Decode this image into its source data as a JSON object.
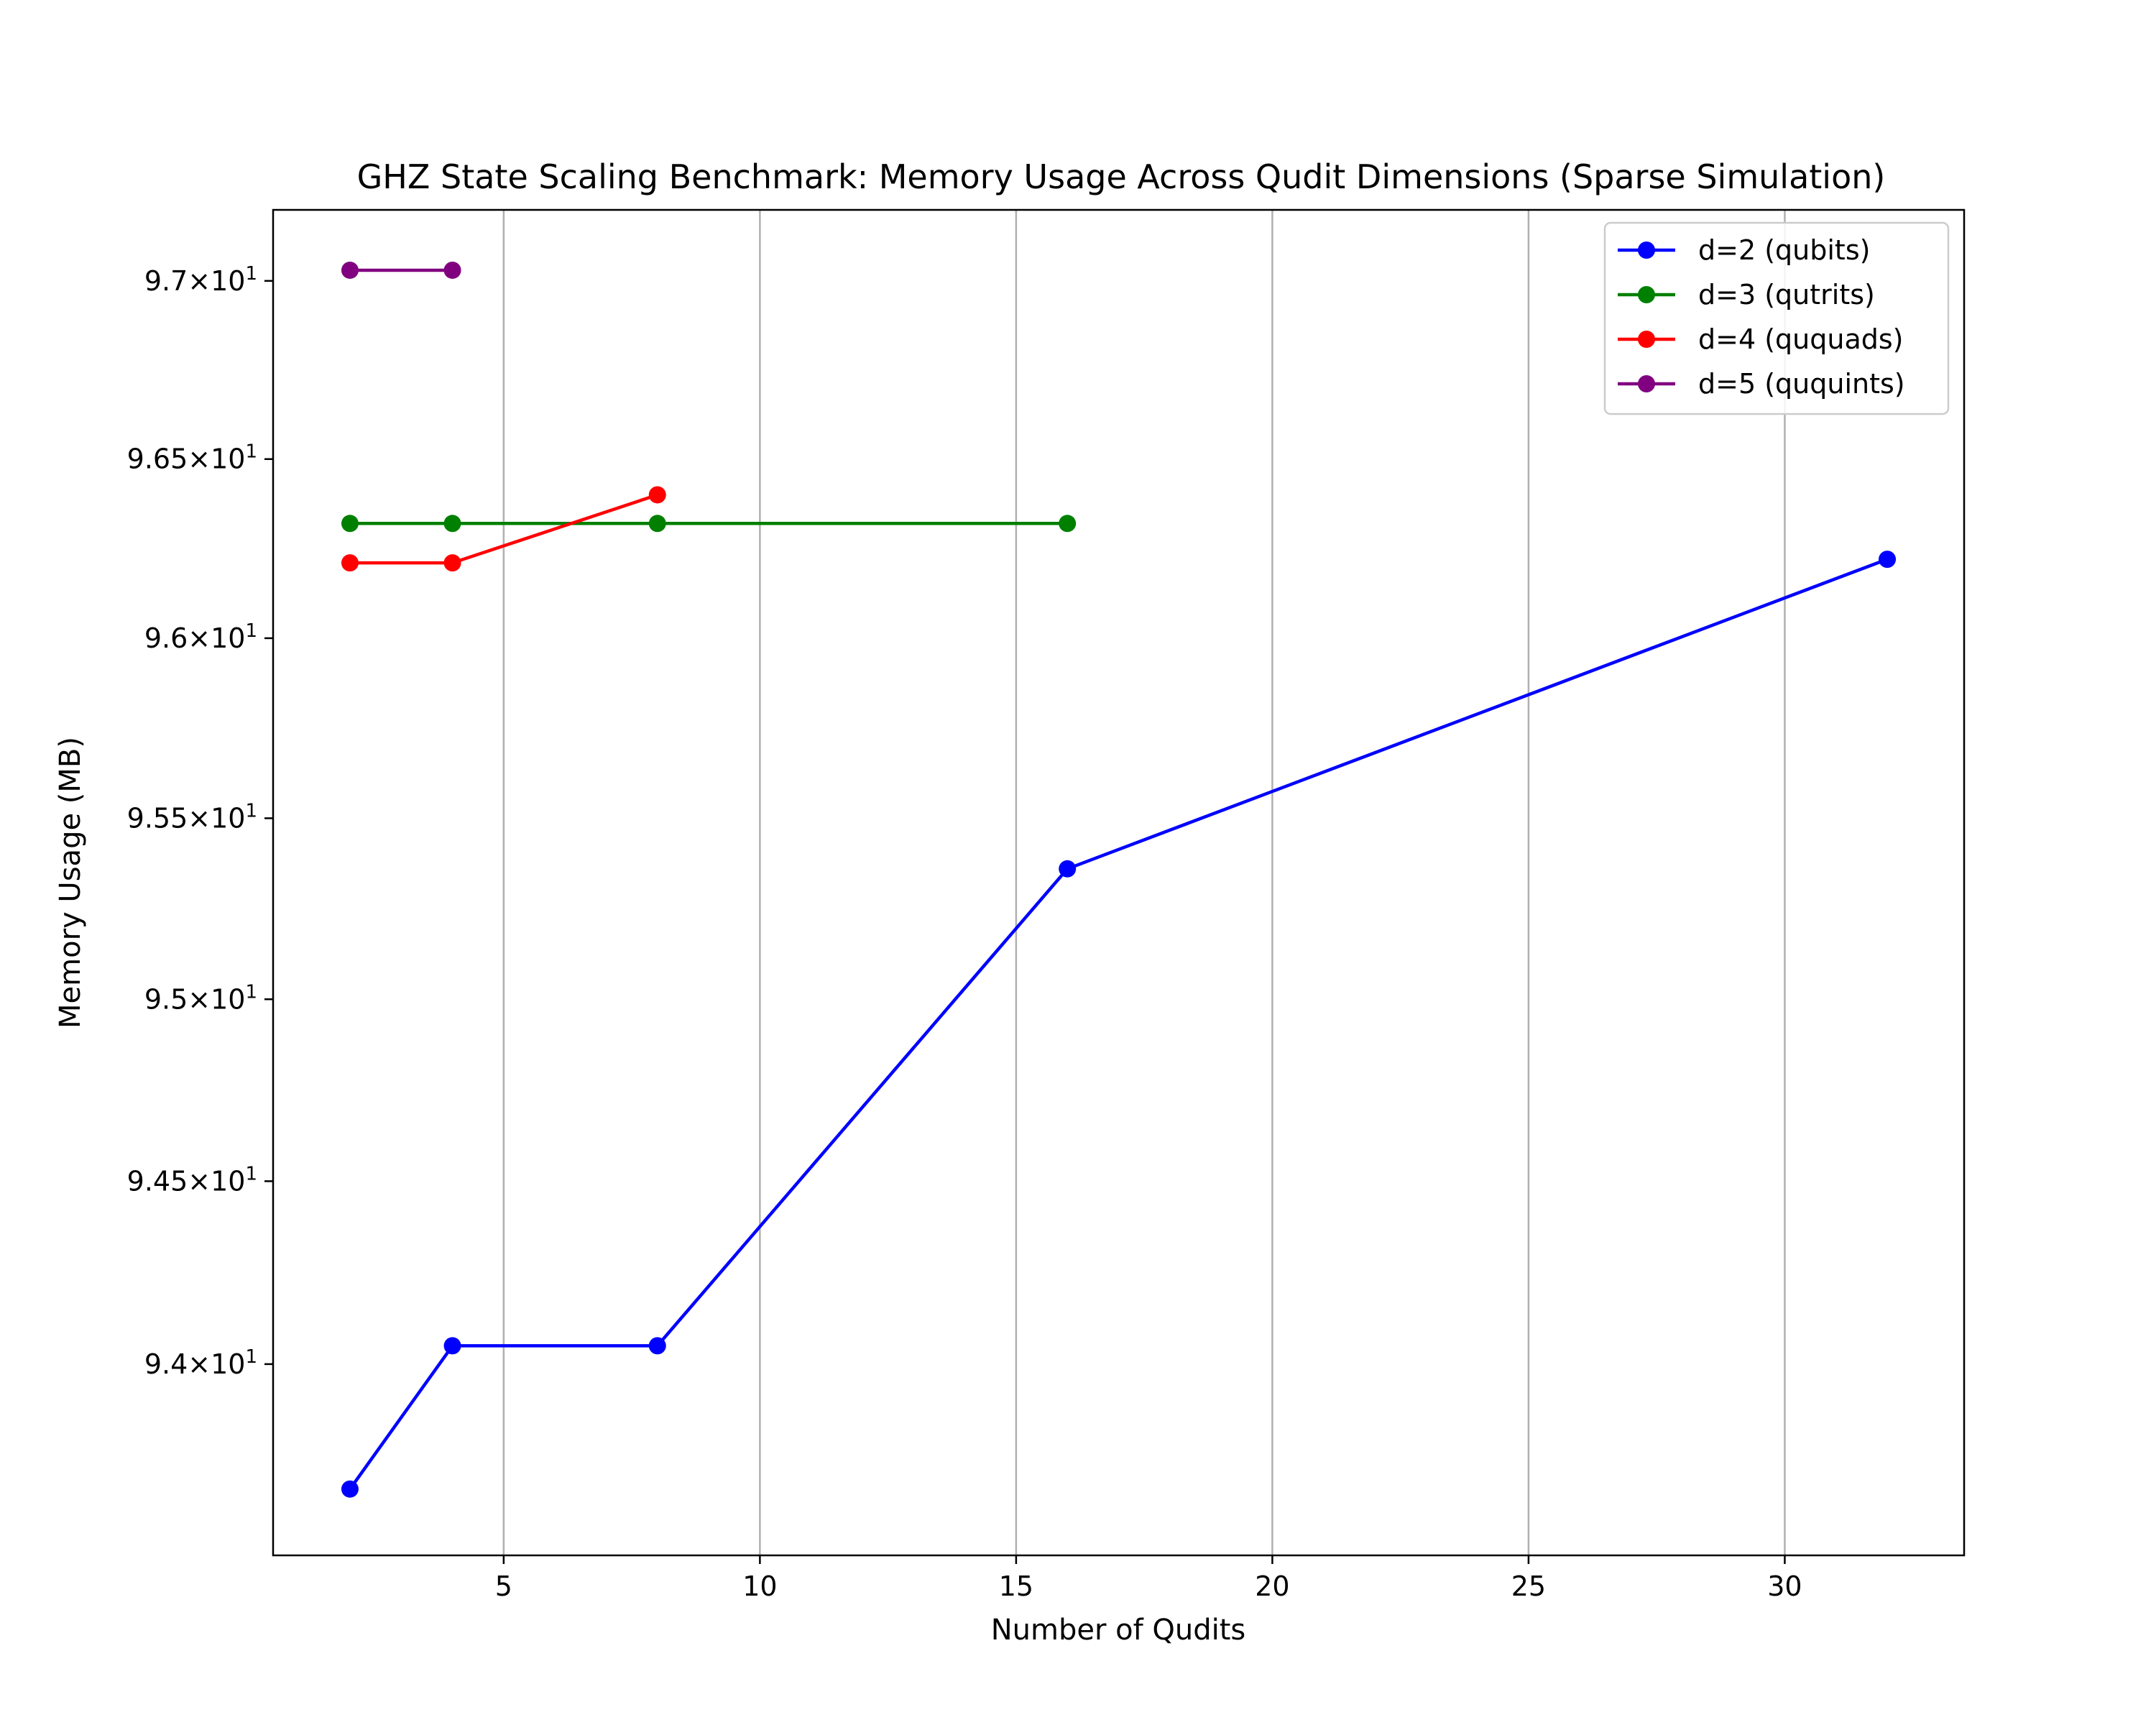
{
  "chart_data": {
    "type": "line",
    "title": "GHZ State Scaling Benchmark: Memory Usage Across Qudit Dimensions (Sparse Simulation)",
    "xlabel": "Number of Qudits",
    "ylabel": "Memory Usage (MB)",
    "xlim": [
      0.5,
      33.5
    ],
    "ylim": [
      93.48,
      97.2
    ],
    "yscale": "log",
    "grid": "x",
    "legend_position": "top-right",
    "x_ticks": [
      {
        "value": 5,
        "label": "5"
      },
      {
        "value": 10,
        "label": "10"
      },
      {
        "value": 15,
        "label": "15"
      },
      {
        "value": 20,
        "label": "20"
      },
      {
        "value": 25,
        "label": "25"
      },
      {
        "value": 30,
        "label": "30"
      }
    ],
    "y_ticks": [
      {
        "value": 94.0,
        "mantissa": "9.4"
      },
      {
        "value": 94.5,
        "mantissa": "9.45"
      },
      {
        "value": 95.0,
        "mantissa": "9.5"
      },
      {
        "value": 95.5,
        "mantissa": "9.55"
      },
      {
        "value": 96.0,
        "mantissa": "9.6"
      },
      {
        "value": 96.5,
        "mantissa": "9.65"
      },
      {
        "value": 97.0,
        "mantissa": "9.7"
      }
    ],
    "y_tick_suffix": "10",
    "y_tick_exponent": "1",
    "series": [
      {
        "name": "d=2 (qubits)",
        "color": "#0000ff",
        "x": [
          2,
          4,
          8,
          16,
          32
        ],
        "y": [
          93.66,
          94.05,
          94.05,
          95.36,
          96.22
        ]
      },
      {
        "name": "d=3 (qutrits)",
        "color": "#008000",
        "x": [
          2,
          4,
          8,
          16
        ],
        "y": [
          96.32,
          96.32,
          96.32,
          96.32
        ]
      },
      {
        "name": "d=4 (ququads)",
        "color": "#ff0000",
        "x": [
          2,
          4,
          8
        ],
        "y": [
          96.21,
          96.21,
          96.4
        ]
      },
      {
        "name": "d=5 (ququints)",
        "color": "#800080",
        "x": [
          2,
          4
        ],
        "y": [
          97.03,
          97.03
        ]
      }
    ]
  }
}
